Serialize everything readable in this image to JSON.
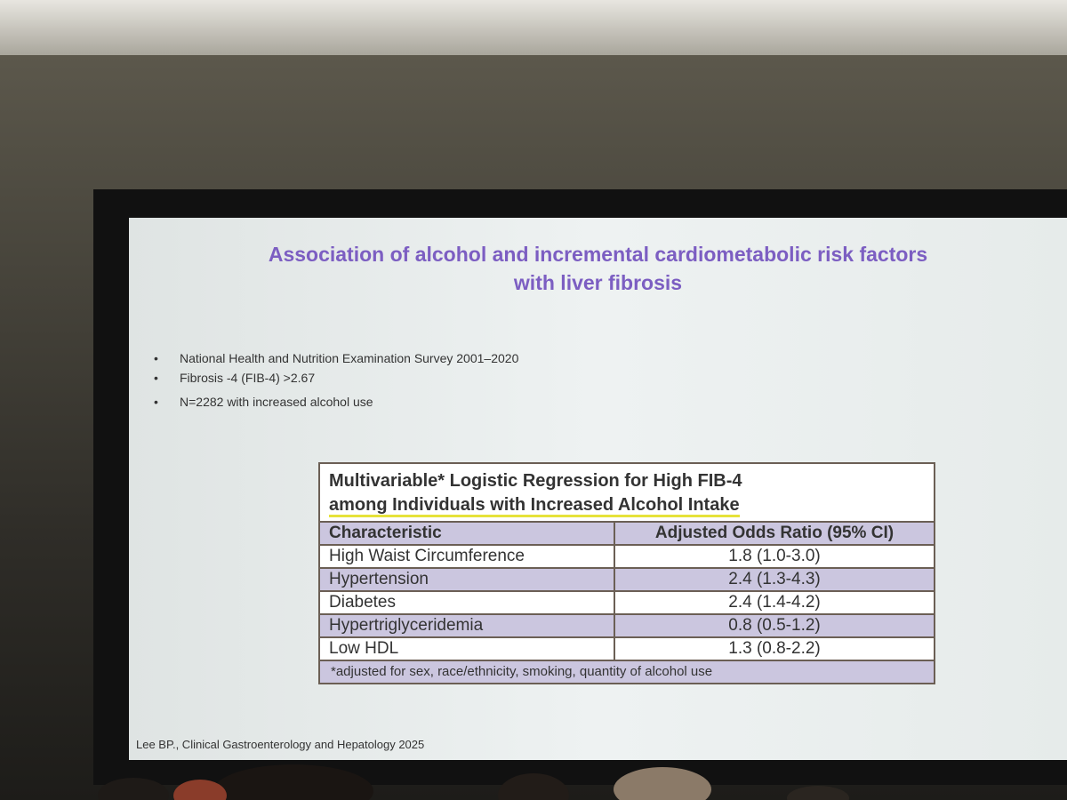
{
  "slide": {
    "title": [
      "Association of alcohol and incremental cardiometabolic risk factors",
      "with liver fibrosis"
    ],
    "bullets": [
      "National Health and Nutrition Examination Survey 2001–2020",
      "Fibrosis -4 (FIB-4) >2.67",
      "N=2282 with increased alcohol use"
    ],
    "table": {
      "title": [
        "Multivariable* Logistic Regression for High FIB-4",
        "among Individuals with Increased Alcohol Intake"
      ],
      "columns": [
        "Characteristic",
        "Adjusted Odds Ratio (95% CI)"
      ],
      "rows": [
        [
          "High Waist Circumference",
          "1.8 (1.0-3.0)"
        ],
        [
          "Hypertension",
          "2.4 (1.3-4.3)"
        ],
        [
          "Diabetes",
          "2.4 (1.4-4.2)"
        ],
        [
          "Hypertriglyceridemia",
          "0.8 (0.5-1.2)"
        ],
        [
          "Low HDL",
          "1.3 (0.8-2.2)"
        ]
      ],
      "footnote": "*adjusted for sex, race/ethnicity, smoking, quantity of alcohol use"
    },
    "citation": "Lee BP., Clinical Gastroenterology and Hepatology 2025"
  }
}
